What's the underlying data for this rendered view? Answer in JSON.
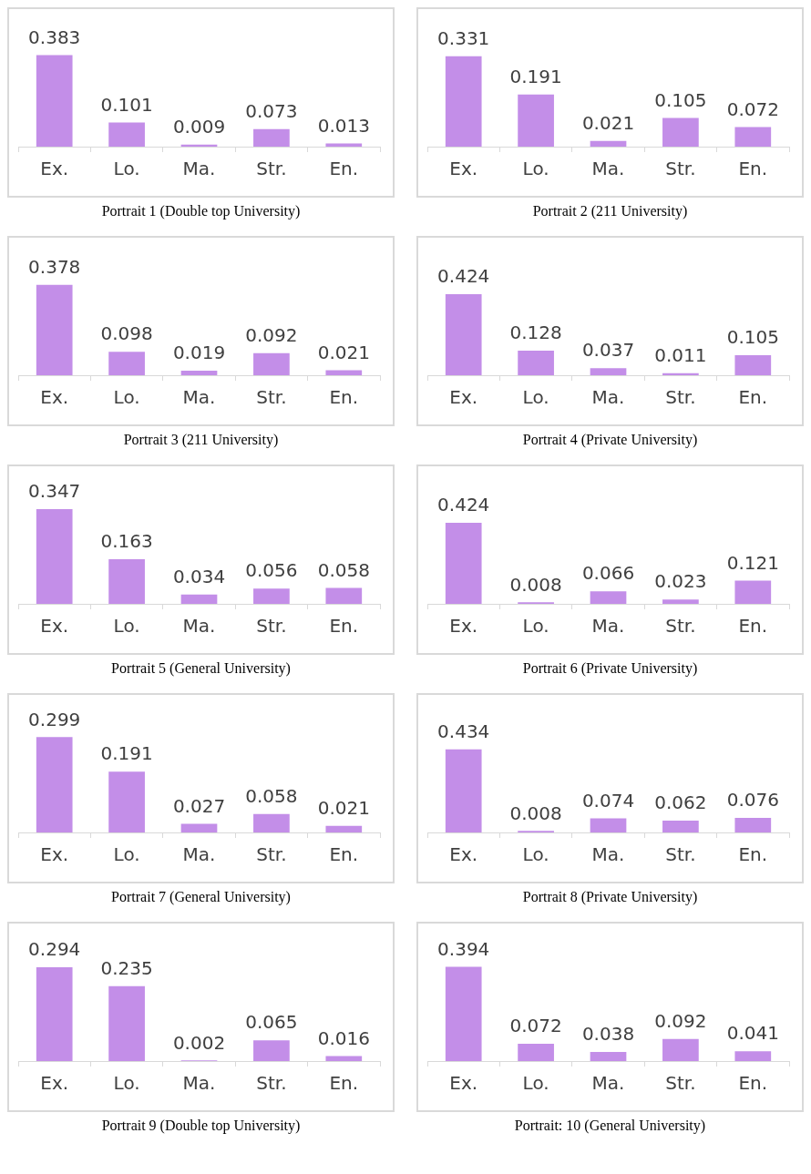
{
  "chart_data": [
    {
      "type": "bar",
      "title": "Portrait 1 (Double top University)",
      "categories": [
        "Ex.",
        "Lo.",
        "Ma.",
        "Str.",
        "En."
      ],
      "values": [
        0.383,
        0.101,
        0.009,
        0.073,
        0.013
      ],
      "color": "#c38ee8",
      "data_labels": true,
      "grid": false,
      "legend": false
    },
    {
      "type": "bar",
      "title": "Portrait 2 (211 University)",
      "categories": [
        "Ex.",
        "Lo.",
        "Ma.",
        "Str.",
        "En."
      ],
      "values": [
        0.331,
        0.191,
        0.021,
        0.105,
        0.072
      ],
      "color": "#c38ee8",
      "data_labels": true,
      "grid": false,
      "legend": false
    },
    {
      "type": "bar",
      "title": "Portrait 3 (211 University)",
      "categories": [
        "Ex.",
        "Lo.",
        "Ma.",
        "Str.",
        "En."
      ],
      "values": [
        0.378,
        0.098,
        0.019,
        0.092,
        0.021
      ],
      "color": "#c38ee8",
      "data_labels": true,
      "grid": false,
      "legend": false
    },
    {
      "type": "bar",
      "title": "Portrait 4 (Private University)",
      "categories": [
        "Ex.",
        "Lo.",
        "Ma.",
        "Str.",
        "En."
      ],
      "values": [
        0.424,
        0.128,
        0.037,
        0.011,
        0.105
      ],
      "color": "#c38ee8",
      "data_labels": true,
      "grid": false,
      "legend": false
    },
    {
      "type": "bar",
      "title": "Portrait 5 (General University)",
      "categories": [
        "Ex.",
        "Lo.",
        "Ma.",
        "Str.",
        "En."
      ],
      "values": [
        0.347,
        0.163,
        0.034,
        0.056,
        0.058
      ],
      "color": "#c38ee8",
      "data_labels": true,
      "grid": false,
      "legend": false
    },
    {
      "type": "bar",
      "title": "Portrait 6 (Private University)",
      "categories": [
        "Ex.",
        "Lo.",
        "Ma.",
        "Str.",
        "En."
      ],
      "values": [
        0.424,
        0.008,
        0.066,
        0.023,
        0.121
      ],
      "color": "#c38ee8",
      "data_labels": true,
      "grid": false,
      "legend": false
    },
    {
      "type": "bar",
      "title": "Portrait 7 (General University)",
      "categories": [
        "Ex.",
        "Lo.",
        "Ma.",
        "Str.",
        "En."
      ],
      "values": [
        0.299,
        0.191,
        0.027,
        0.058,
        0.021
      ],
      "color": "#c38ee8",
      "data_labels": true,
      "grid": false,
      "legend": false
    },
    {
      "type": "bar",
      "title": "Portrait 8 (Private University)",
      "categories": [
        "Ex.",
        "Lo.",
        "Ma.",
        "Str.",
        "En."
      ],
      "values": [
        0.434,
        0.008,
        0.074,
        0.062,
        0.076
      ],
      "color": "#c38ee8",
      "data_labels": true,
      "grid": false,
      "legend": false
    },
    {
      "type": "bar",
      "title": "Portrait 9 (Double top University)",
      "categories": [
        "Ex.",
        "Lo.",
        "Ma.",
        "Str.",
        "En."
      ],
      "values": [
        0.294,
        0.235,
        0.002,
        0.065,
        0.016
      ],
      "color": "#c38ee8",
      "data_labels": true,
      "grid": false,
      "legend": false
    },
    {
      "type": "bar",
      "title": "Portrait: 10 (General University)",
      "categories": [
        "Ex.",
        "Lo.",
        "Ma.",
        "Str.",
        "En."
      ],
      "values": [
        0.394,
        0.072,
        0.038,
        0.092,
        0.041
      ],
      "color": "#c38ee8",
      "data_labels": true,
      "grid": false,
      "legend": false
    }
  ]
}
